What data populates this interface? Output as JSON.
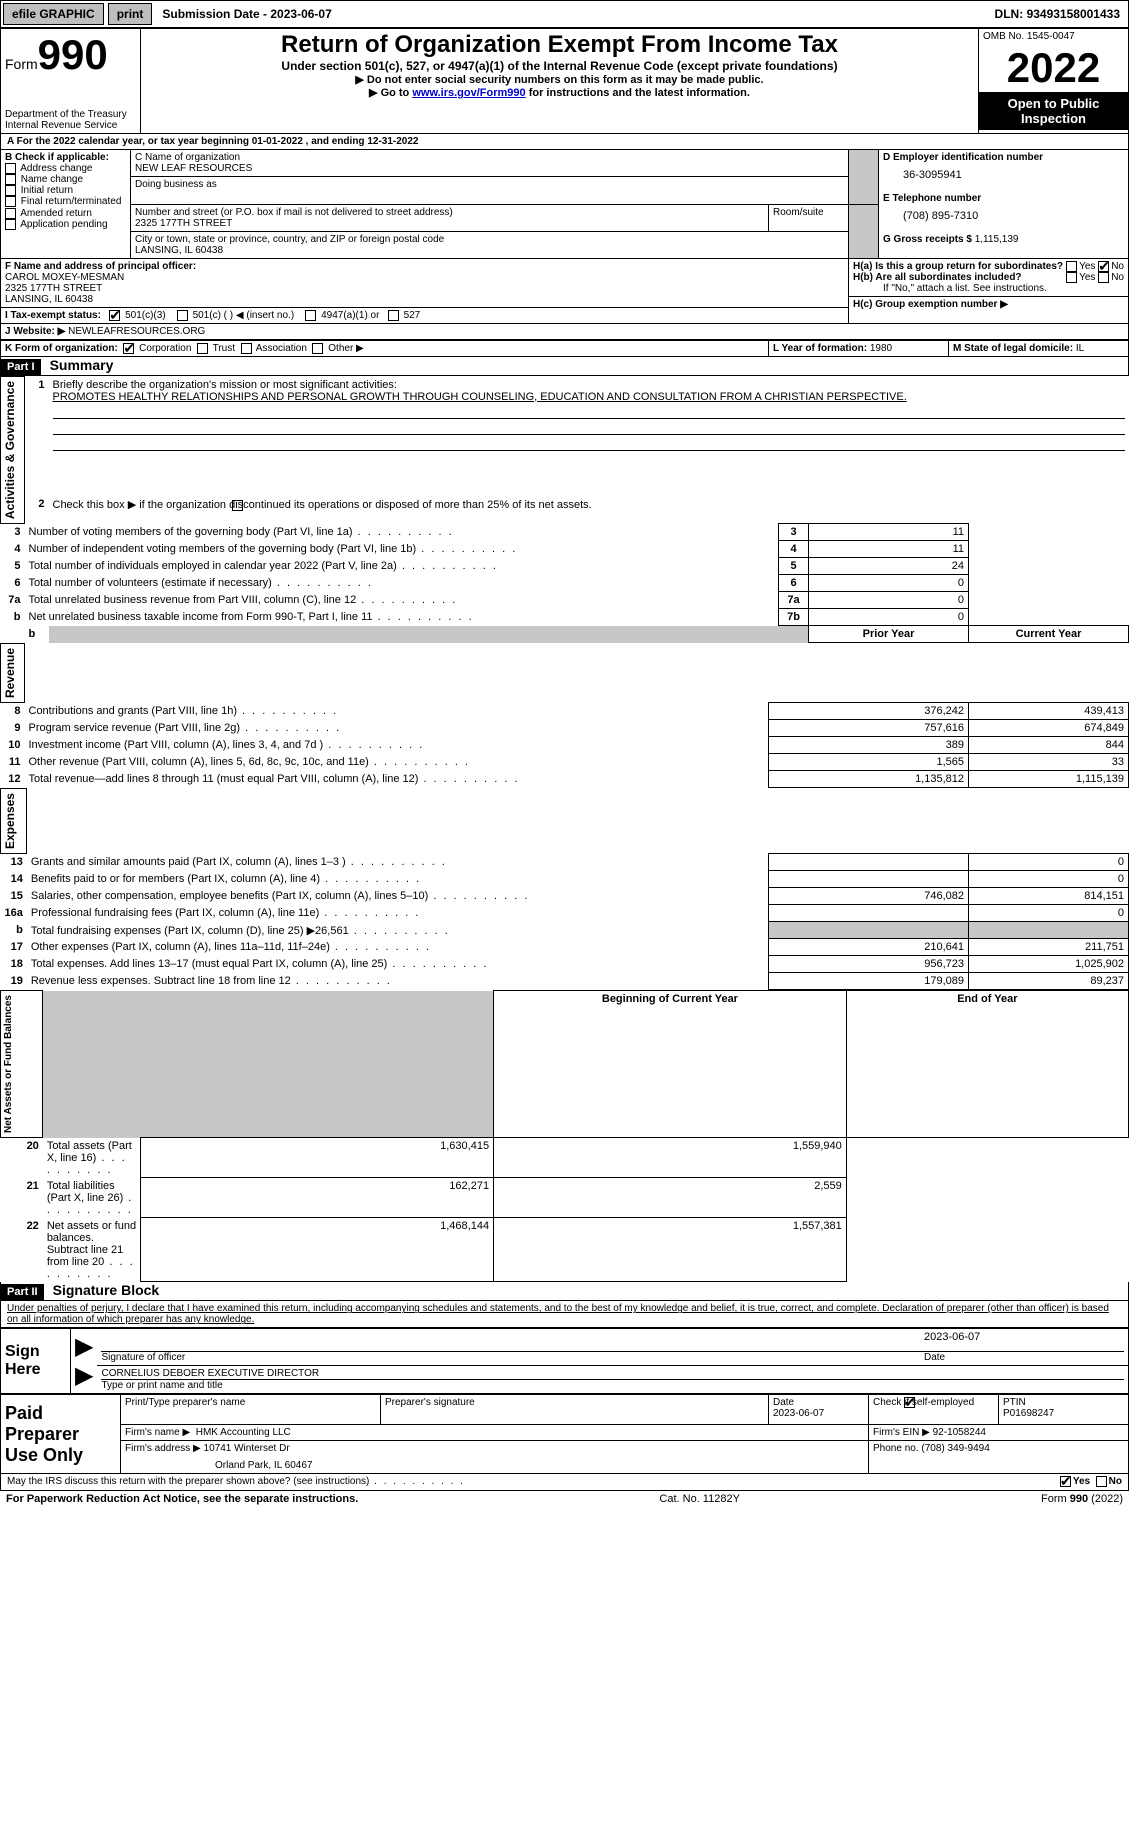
{
  "topbar": {
    "efile": "efile GRAPHIC",
    "print": "print",
    "submission": "Submission Date - 2023-06-07",
    "dln_label": "DLN:",
    "dln": "93493158001433"
  },
  "header": {
    "form_word": "Form",
    "form_num": "990",
    "dept": "Department of the Treasury Internal Revenue Service",
    "title": "Return of Organization Exempt From Income Tax",
    "subtitle": "Under section 501(c), 527, or 4947(a)(1) of the Internal Revenue Code (except private foundations)",
    "instr1": "▶ Do not enter social security numbers on this form as it may be made public.",
    "instr2_pre": "▶ Go to ",
    "instr2_link": "www.irs.gov/Form990",
    "instr2_post": " for instructions and the latest information.",
    "omb": "OMB No. 1545-0047",
    "year": "2022",
    "inspection": "Open to Public Inspection"
  },
  "sectionA": {
    "line": "A For the 2022 calendar year, or tax year beginning 01-01-2022     , and ending 12-31-2022"
  },
  "sectionB": {
    "label": "B Check if applicable:",
    "items": [
      "Address change",
      "Name change",
      "Initial return",
      "Final return/terminated",
      "Amended return",
      "Application pending"
    ]
  },
  "sectionC": {
    "name_label": "C Name of organization",
    "name": "NEW LEAF RESOURCES",
    "dba_label": "Doing business as",
    "street_label": "Number and street (or P.O. box if mail is not delivered to street address)",
    "room_label": "Room/suite",
    "street": "2325 177TH STREET",
    "city_label": "City or town, state or province, country, and ZIP or foreign postal code",
    "city": "LANSING, IL  60438"
  },
  "sectionD": {
    "label": "D Employer identification number",
    "value": "36-3095941"
  },
  "sectionE": {
    "label": "E Telephone number",
    "value": "(708) 895-7310"
  },
  "sectionG": {
    "label": "G Gross receipts $",
    "value": "1,115,139"
  },
  "sectionF": {
    "label": "F  Name and address of principal officer:",
    "name": "CAROL MOXEY-MESMAN",
    "street": "2325 177TH STREET",
    "city": "LANSING, IL  60438"
  },
  "sectionH": {
    "ha": "H(a)  Is this a group return for subordinates?",
    "hb": "H(b)  Are all subordinates included?",
    "hb_note": "If \"No,\" attach a list. See instructions.",
    "hc": "H(c)  Group exemption number ▶",
    "yes": "Yes",
    "no": "No"
  },
  "sectionI": {
    "label": "I    Tax-exempt status:",
    "c3": "501(c)(3)",
    "c": "501(c) (  ) ◀ (insert no.)",
    "a1": "4947(a)(1) or",
    "s527": "527"
  },
  "sectionJ": {
    "label": "J   Website: ▶",
    "value": " NEWLEAFRESOURCES.ORG"
  },
  "sectionK": {
    "label": "K Form of organization:",
    "corp": "Corporation",
    "trust": "Trust",
    "assoc": "Association",
    "other": "Other ▶"
  },
  "sectionL": {
    "label": "L Year of formation:",
    "value": "1980"
  },
  "sectionM": {
    "label": "M State of legal domicile:",
    "value": "IL"
  },
  "part1": {
    "header": "Part I",
    "title": "Summary",
    "side_ag": "Activities & Governance",
    "side_rev": "Revenue",
    "side_exp": "Expenses",
    "side_na": "Net Assets or Fund Balances",
    "l1": "Briefly describe the organization's mission or most significant activities:",
    "l1v": "PROMOTES HEALTHY RELATIONSHIPS AND PERSONAL GROWTH THROUGH COUNSELING, EDUCATION AND CONSULTATION FROM A CHRISTIAN PERSPECTIVE.",
    "l2": "Check this box ▶        if the organization discontinued its operations or disposed of more than 25% of its net assets.",
    "rows_ag": [
      {
        "n": "3",
        "t": "Number of voting members of the governing body (Part VI, line 1a)",
        "b": "3",
        "v": "11"
      },
      {
        "n": "4",
        "t": "Number of independent voting members of the governing body (Part VI, line 1b)",
        "b": "4",
        "v": "11"
      },
      {
        "n": "5",
        "t": "Total number of individuals employed in calendar year 2022 (Part V, line 2a)",
        "b": "5",
        "v": "24"
      },
      {
        "n": "6",
        "t": "Total number of volunteers (estimate if necessary)",
        "b": "6",
        "v": "0"
      },
      {
        "n": "7a",
        "t": "Total unrelated business revenue from Part VIII, column (C), line 12",
        "b": "7a",
        "v": "0"
      },
      {
        "n": "b",
        "t": "Net unrelated business taxable income from Form 990-T, Part I, line 11",
        "b": "7b",
        "v": "0"
      }
    ],
    "col_prior": "Prior Year",
    "col_current": "Current Year",
    "rows_rev": [
      {
        "n": "8",
        "t": "Contributions and grants (Part VIII, line 1h)",
        "p": "376,242",
        "c": "439,413"
      },
      {
        "n": "9",
        "t": "Program service revenue (Part VIII, line 2g)",
        "p": "757,616",
        "c": "674,849"
      },
      {
        "n": "10",
        "t": "Investment income (Part VIII, column (A), lines 3, 4, and 7d )",
        "p": "389",
        "c": "844"
      },
      {
        "n": "11",
        "t": "Other revenue (Part VIII, column (A), lines 5, 6d, 8c, 9c, 10c, and 11e)",
        "p": "1,565",
        "c": "33"
      },
      {
        "n": "12",
        "t": "Total revenue—add lines 8 through 11 (must equal Part VIII, column (A), line 12)",
        "p": "1,135,812",
        "c": "1,115,139"
      }
    ],
    "rows_exp": [
      {
        "n": "13",
        "t": "Grants and similar amounts paid (Part IX, column (A), lines 1–3 )",
        "p": "",
        "c": "0"
      },
      {
        "n": "14",
        "t": "Benefits paid to or for members (Part IX, column (A), line 4)",
        "p": "",
        "c": "0"
      },
      {
        "n": "15",
        "t": "Salaries, other compensation, employee benefits (Part IX, column (A), lines 5–10)",
        "p": "746,082",
        "c": "814,151"
      },
      {
        "n": "16a",
        "t": "Professional fundraising fees (Part IX, column (A), line 11e)",
        "p": "",
        "c": "0"
      },
      {
        "n": "b",
        "t": "Total fundraising expenses (Part IX, column (D), line 25) ▶26,561",
        "p": "shade",
        "c": "shade"
      },
      {
        "n": "17",
        "t": "Other expenses (Part IX, column (A), lines 11a–11d, 11f–24e)",
        "p": "210,641",
        "c": "211,751"
      },
      {
        "n": "18",
        "t": "Total expenses. Add lines 13–17 (must equal Part IX, column (A), line 25)",
        "p": "956,723",
        "c": "1,025,902"
      },
      {
        "n": "19",
        "t": "Revenue less expenses. Subtract line 18 from line 12",
        "p": "179,089",
        "c": "89,237"
      }
    ],
    "col_begin": "Beginning of Current Year",
    "col_end": "End of Year",
    "rows_na": [
      {
        "n": "20",
        "t": "Total assets (Part X, line 16)",
        "p": "1,630,415",
        "c": "1,559,940"
      },
      {
        "n": "21",
        "t": "Total liabilities (Part X, line 26)",
        "p": "162,271",
        "c": "2,559"
      },
      {
        "n": "22",
        "t": "Net assets or fund balances. Subtract line 21 from line 20",
        "p": "1,468,144",
        "c": "1,557,381"
      }
    ]
  },
  "part2": {
    "header": "Part II",
    "title": "Signature Block",
    "decl": "Under penalties of perjury, I declare that I have examined this return, including accompanying schedules and statements, and to the best of my knowledge and belief, it is true, correct, and complete. Declaration of preparer (other than officer) is based on all information of which preparer has any knowledge.",
    "sign_here": "Sign Here",
    "sig_officer": "Signature of officer",
    "sig_date": "2023-06-07",
    "date_lbl": "Date",
    "officer_name": "CORNELIUS DEBOER  EXECUTIVE DIRECTOR",
    "type_name": "Type or print name and title",
    "paid": "Paid Preparer Use Only",
    "prep_name_lbl": "Print/Type preparer's name",
    "prep_sig_lbl": "Preparer's signature",
    "prep_date_lbl": "Date",
    "prep_date": "2023-06-07",
    "check_self": "Check          if self-employed",
    "ptin_lbl": "PTIN",
    "ptin": "P01698247",
    "firm_name_lbl": "Firm's name     ▶",
    "firm_name": "HMK Accounting LLC",
    "firm_ein_lbl": "Firm's EIN ▶",
    "firm_ein": "92-1058244",
    "firm_addr_lbl": "Firm's address ▶",
    "firm_addr1": "10741 Winterset Dr",
    "firm_addr2": "Orland Park, IL  60467",
    "phone_lbl": "Phone no.",
    "phone": "(708) 349-9494",
    "discuss": "May the IRS discuss this return with the preparer shown above? (see instructions)",
    "yes": "Yes",
    "no": "No"
  },
  "footer": {
    "left": "For Paperwork Reduction Act Notice, see the separate instructions.",
    "mid": "Cat. No. 11282Y",
    "right": "Form 990 (2022)"
  }
}
